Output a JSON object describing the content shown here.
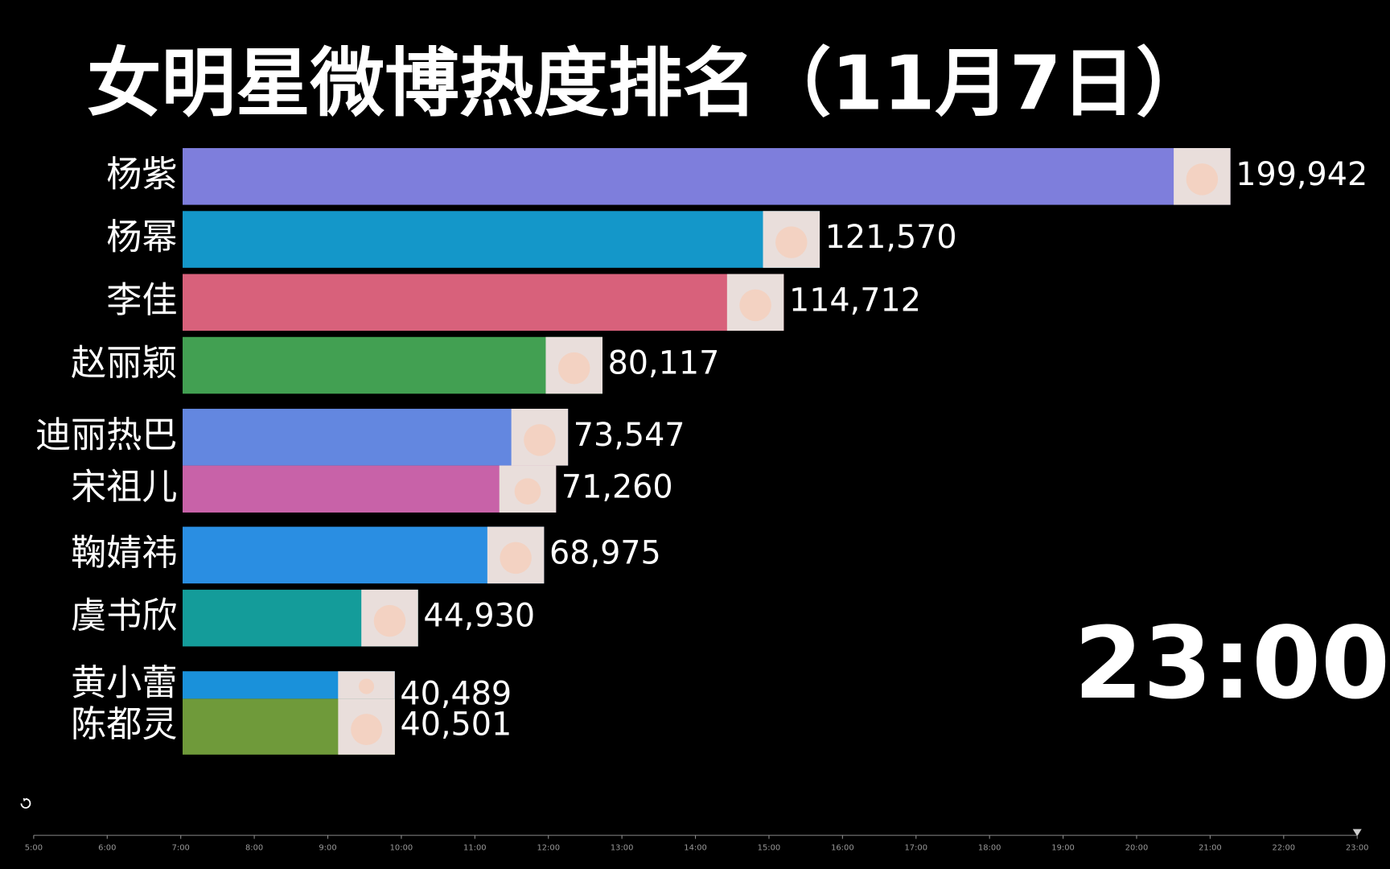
{
  "chart_data": {
    "type": "bar",
    "orientation": "horizontal",
    "title": "女明星微博热度排名（11月7日）",
    "categories": [
      "杨紫",
      "杨幂",
      "李佳",
      "赵丽颖",
      "迪丽热巴",
      "宋祖儿",
      "鞠婧祎",
      "虞书欣",
      "黄小蕾",
      "陈都灵"
    ],
    "values": [
      199942,
      121570,
      114712,
      80117,
      73547,
      71260,
      68975,
      44930,
      40489,
      40501
    ],
    "value_labels": [
      "199,942",
      "121,570",
      "114,712",
      "80,117",
      "73,547",
      "71,260",
      "68,975",
      "44,930",
      "40,489",
      "40,501"
    ],
    "colors": [
      "#7e7edc",
      "#1497c9",
      "#d8617b",
      "#42a052",
      "#6387e0",
      "#c862a8",
      "#2a8ee2",
      "#149c9a",
      "#1a91da",
      "#6f9a3a"
    ],
    "current_time": "23:00",
    "timeline": {
      "ticks": [
        "5:00",
        "6:00",
        "7:00",
        "8:00",
        "9:00",
        "10:00",
        "11:00",
        "12:00",
        "13:00",
        "14:00",
        "15:00",
        "16:00",
        "17:00",
        "18:00",
        "19:00",
        "20:00",
        "21:00",
        "22:00",
        "23:00"
      ]
    }
  }
}
